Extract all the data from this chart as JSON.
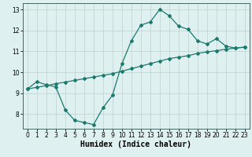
{
  "line1_x": [
    0,
    1,
    2,
    3,
    4,
    5,
    6,
    7,
    8,
    9,
    10,
    11,
    12,
    13,
    14,
    15,
    16,
    17,
    18,
    19,
    20,
    21,
    22,
    23
  ],
  "line1_y": [
    9.2,
    9.55,
    9.4,
    9.3,
    8.2,
    7.7,
    7.6,
    7.5,
    8.3,
    8.9,
    10.4,
    11.5,
    12.25,
    12.4,
    13.0,
    12.7,
    12.2,
    12.05,
    11.5,
    11.35,
    11.6,
    11.25,
    11.15,
    11.2
  ],
  "line2_x": [
    0,
    1,
    2,
    3,
    4,
    5,
    6,
    7,
    8,
    9,
    10,
    11,
    12,
    13,
    14,
    15,
    16,
    17,
    18,
    19,
    20,
    21,
    22,
    23
  ],
  "line2_y": [
    9.2,
    9.28,
    9.36,
    9.45,
    9.53,
    9.61,
    9.69,
    9.77,
    9.85,
    9.93,
    10.05,
    10.17,
    10.29,
    10.41,
    10.53,
    10.65,
    10.72,
    10.79,
    10.9,
    10.97,
    11.03,
    11.1,
    11.15,
    11.2
  ],
  "line_color": "#1a7a6e",
  "bg_plot": "#dff0f0",
  "bg_figure": "#dff0f0",
  "grid_color": "#c0d8d0",
  "xlabel": "Humidex (Indice chaleur)",
  "ylim": [
    7.3,
    13.3
  ],
  "xlim": [
    -0.5,
    23.5
  ],
  "yticks": [
    8,
    9,
    10,
    11,
    12,
    13
  ],
  "xticks": [
    0,
    1,
    2,
    3,
    4,
    5,
    6,
    7,
    8,
    9,
    10,
    11,
    12,
    13,
    14,
    15,
    16,
    17,
    18,
    19,
    20,
    21,
    22,
    23
  ],
  "marker": "D",
  "marker_size": 2.0,
  "line_width": 0.9,
  "tick_fontsize": 5.5,
  "xlabel_fontsize": 7.0
}
